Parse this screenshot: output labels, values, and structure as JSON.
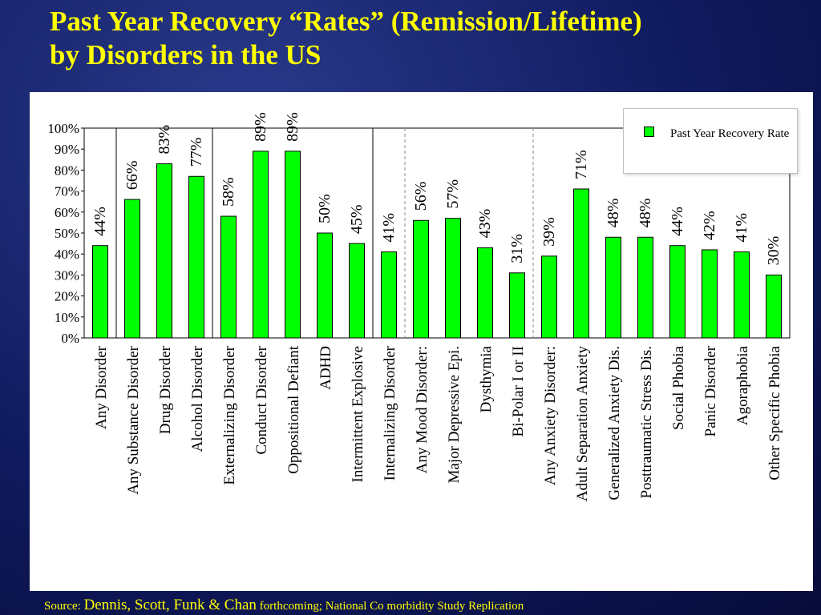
{
  "title": {
    "line1": "Past Year Recovery “Rates” (Remission/Lifetime)",
    "line2": "by Disorders in the US"
  },
  "source": {
    "prefix": "Source:",
    "authors": "Dennis, Scott, Funk & Chan",
    "rest": "forthcoming; National Co morbidity Study Replication"
  },
  "colors": {
    "bar": "#00ff00",
    "title": "#ffff00",
    "background": "#101a5e"
  },
  "chart_data": {
    "type": "bar",
    "title": "",
    "xlabel": "",
    "ylabel": "",
    "ylim": [
      0,
      100
    ],
    "yticks": [
      "0%",
      "10%",
      "20%",
      "30%",
      "40%",
      "50%",
      "60%",
      "70%",
      "80%",
      "90%",
      "100%"
    ],
    "grid": false,
    "legend_position": "top-right",
    "series": [
      {
        "name": "Past Year Recovery Rate",
        "values": [
          44,
          66,
          83,
          77,
          58,
          89,
          89,
          50,
          45,
          41,
          56,
          57,
          43,
          31,
          39,
          71,
          48,
          48,
          44,
          42,
          41,
          30
        ]
      }
    ],
    "categories": [
      "Any Disorder",
      "Any Substance Disorder",
      "Drug Disorder",
      "Alcohol Disorder",
      "Externalizing Disorder",
      "Conduct Disorder",
      "Oppositional Defiant",
      "ADHD",
      "Intermittent Explosive",
      "Internalizing Disorder",
      "Any Mood Disorder:",
      "Major Depressive Epi.",
      "Dysthymia",
      "Bi-Polar I or II",
      "Any Anxiety Disorder:",
      "Adult Separation Anxiety",
      "Generalized Anxiety Dis.",
      "Posttraumatic Stress Dis.",
      "Social Phobia",
      "Panic Disorder",
      "Agoraphobia",
      "Other Specific Phobia"
    ],
    "data_labels": [
      "44%",
      "66%",
      "83%",
      "77%",
      "58%",
      "89%",
      "89%",
      "50%",
      "45%",
      "41%",
      "56%",
      "57%",
      "43%",
      "31%",
      "39%",
      "71%",
      "48%",
      "48%",
      "44%",
      "42%",
      "41%",
      "30%"
    ],
    "group_separators": [
      {
        "after_index": 0,
        "style": "solid"
      },
      {
        "after_index": 3,
        "style": "solid"
      },
      {
        "after_index": 8,
        "style": "solid"
      },
      {
        "after_index": 9,
        "style": "dashed"
      },
      {
        "after_index": 13,
        "style": "dashed"
      }
    ]
  }
}
